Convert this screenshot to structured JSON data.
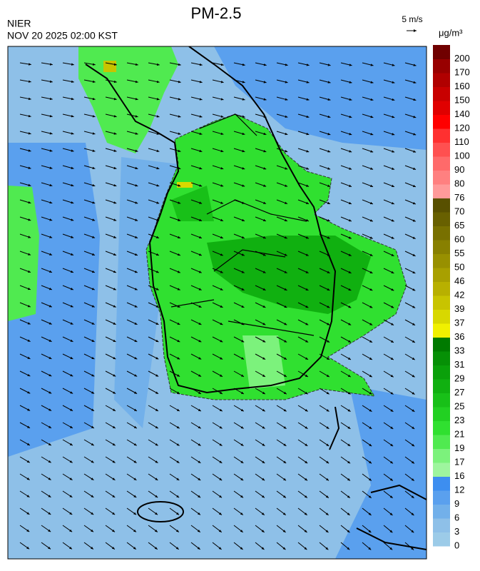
{
  "header": {
    "title": "PM-2.5",
    "agency": "NIER",
    "datetime": "NOV 20 2025 02:00 KST",
    "wind_scale": "5 m/s"
  },
  "colorbar": {
    "unit": "μg/m³",
    "ticks": [
      0,
      3,
      6,
      9,
      12,
      16,
      17,
      19,
      21,
      23,
      25,
      27,
      29,
      31,
      33,
      36,
      37,
      39,
      42,
      46,
      50,
      55,
      60,
      65,
      70,
      76,
      80,
      90,
      100,
      110,
      120,
      140,
      150,
      160,
      170,
      200
    ],
    "colors": [
      "#9ccbe8",
      "#8ec0e8",
      "#72b0ea",
      "#5aa0ee",
      "#3d8ef0",
      "#9ef59e",
      "#7cf27c",
      "#50ea50",
      "#30e030",
      "#22d022",
      "#18c018",
      "#10b010",
      "#0aa00a",
      "#069006",
      "#007a00",
      "#f0f000",
      "#d8d800",
      "#c8c400",
      "#b8b000",
      "#a8a000",
      "#989000",
      "#888000",
      "#787000",
      "#686000",
      "#585000",
      "#ff9a9a",
      "#ff8080",
      "#ff6a6a",
      "#ff5050",
      "#ff3030",
      "#ff0000",
      "#e00000",
      "#c80000",
      "#b00000",
      "#980000",
      "#700000"
    ]
  }
}
